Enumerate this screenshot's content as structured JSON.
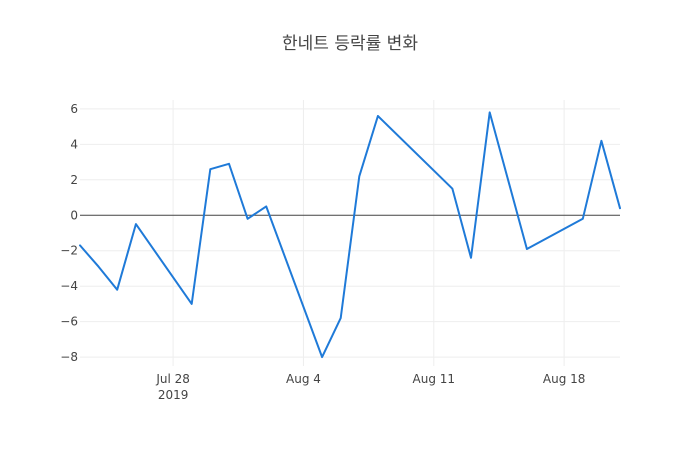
{
  "chart_data": {
    "type": "line",
    "title": "한네트 등락률 변화",
    "xlabel": "",
    "ylabel": "",
    "x_type": "date",
    "x": [
      "2019-07-23",
      "2019-07-24",
      "2019-07-25",
      "2019-07-26",
      "2019-07-29",
      "2019-07-30",
      "2019-07-31",
      "2019-08-01",
      "2019-08-02",
      "2019-08-05",
      "2019-08-06",
      "2019-08-07",
      "2019-08-08",
      "2019-08-12",
      "2019-08-13",
      "2019-08-14",
      "2019-08-16",
      "2019-08-19",
      "2019-08-20",
      "2019-08-21"
    ],
    "series": [
      {
        "name": "",
        "color": "#1f7ad8",
        "values": [
          -1.7,
          -2.9,
          -4.2,
          -0.5,
          -5.0,
          2.6,
          2.9,
          -0.2,
          0.5,
          -8.0,
          -5.8,
          2.2,
          5.6,
          1.5,
          -2.4,
          5.8,
          -1.9,
          -0.2,
          4.2,
          0.4
        ]
      }
    ],
    "xlim": [
      "2019-07-23",
      "2019-08-21"
    ],
    "ylim": [
      -8.5,
      6.5
    ],
    "y_ticks": [
      -8,
      -6,
      -4,
      -2,
      0,
      2,
      4,
      6
    ],
    "y_tick_labels": [
      "−8",
      "−6",
      "−4",
      "−2",
      "0",
      "2",
      "4",
      "6"
    ],
    "x_ticks": [
      "2019-07-28",
      "2019-08-04",
      "2019-08-11",
      "2019-08-18"
    ],
    "x_tick_labels": [
      "Jul 28",
      "Aug 4",
      "Aug 11",
      "Aug 18"
    ],
    "x_tick_sublabel": "2019",
    "grid": true,
    "zero_line": true,
    "legend": "none"
  }
}
